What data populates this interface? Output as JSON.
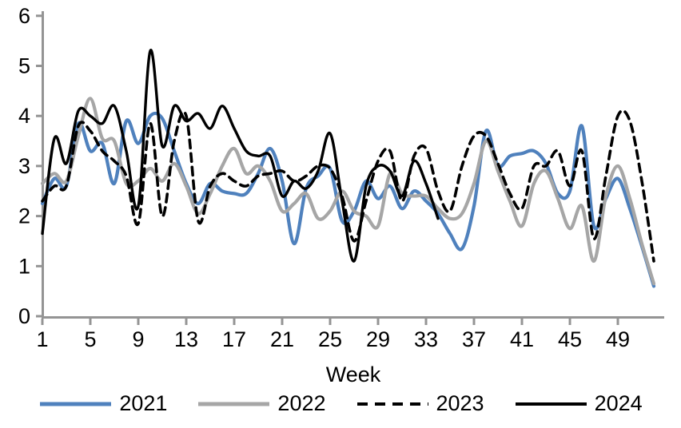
{
  "chart_data": {
    "type": "line",
    "title": "",
    "xlabel": "Week",
    "ylabel": "",
    "xlim": [
      1,
      52
    ],
    "ylim": [
      0,
      6
    ],
    "x_ticks": [
      1,
      5,
      9,
      13,
      17,
      21,
      25,
      29,
      33,
      37,
      41,
      45,
      49
    ],
    "y_ticks": [
      0,
      1,
      2,
      3,
      4,
      5,
      6
    ],
    "grid": false,
    "legend_position": "bottom",
    "smoothing": "excel-spline",
    "x": [
      1,
      2,
      3,
      4,
      5,
      6,
      7,
      8,
      9,
      10,
      11,
      12,
      13,
      14,
      15,
      16,
      17,
      18,
      19,
      20,
      21,
      22,
      23,
      24,
      25,
      26,
      27,
      28,
      29,
      30,
      31,
      32,
      33,
      34,
      35,
      36,
      37,
      38,
      39,
      40,
      41,
      42,
      43,
      44,
      45,
      46,
      47,
      48,
      49,
      50,
      51,
      52
    ],
    "series": [
      {
        "name": "2021",
        "color": "#4f81bd",
        "style": "solid",
        "width": 4.2,
        "values": [
          2.25,
          2.75,
          2.6,
          3.85,
          3.3,
          3.45,
          2.65,
          3.9,
          3.45,
          4.0,
          3.95,
          3.3,
          2.65,
          2.25,
          2.65,
          2.5,
          2.45,
          2.45,
          2.85,
          3.35,
          2.7,
          1.45,
          2.55,
          2.8,
          2.95,
          1.9,
          2.1,
          2.7,
          2.35,
          2.6,
          2.15,
          2.5,
          2.3,
          2.05,
          1.65,
          1.35,
          2.2,
          3.7,
          3.0,
          3.2,
          3.25,
          3.3,
          3.05,
          2.45,
          2.5,
          3.8,
          1.8,
          2.35,
          2.75,
          2.15,
          1.4,
          0.6
        ]
      },
      {
        "name": "2022",
        "color": "#a6a6a6",
        "style": "solid",
        "width": 4.2,
        "values": [
          2.65,
          2.85,
          2.7,
          3.6,
          4.35,
          3.55,
          3.5,
          2.65,
          2.7,
          2.95,
          2.7,
          3.05,
          2.6,
          2.05,
          2.45,
          3.0,
          3.35,
          2.85,
          3.0,
          2.7,
          2.1,
          2.25,
          2.45,
          1.95,
          2.1,
          2.5,
          2.1,
          2.0,
          1.8,
          2.85,
          2.45,
          2.4,
          2.4,
          2.15,
          1.95,
          2.05,
          2.65,
          3.5,
          2.9,
          2.3,
          1.8,
          2.65,
          2.9,
          2.35,
          1.75,
          2.2,
          1.1,
          2.4,
          3.0,
          2.35,
          1.45,
          0.65
        ]
      },
      {
        "name": "2023",
        "color": "#000000",
        "style": "dashed",
        "width": 3.6,
        "values": [
          2.3,
          2.6,
          2.6,
          3.8,
          3.7,
          3.3,
          3.1,
          2.8,
          1.85,
          3.85,
          2.0,
          3.5,
          4.0,
          1.9,
          2.6,
          2.85,
          2.7,
          2.6,
          2.8,
          2.85,
          2.9,
          2.7,
          2.8,
          3.0,
          2.95,
          2.4,
          1.5,
          2.3,
          3.1,
          3.3,
          2.3,
          3.2,
          3.35,
          2.5,
          2.1,
          3.0,
          3.6,
          3.6,
          3.05,
          2.45,
          2.15,
          3.0,
          3.0,
          3.3,
          2.6,
          3.3,
          1.55,
          2.8,
          4.0,
          3.9,
          2.7,
          1.1
        ]
      },
      {
        "name": "2024",
        "color": "#000000",
        "style": "solid",
        "width": 3.4,
        "values": [
          1.65,
          3.55,
          3.05,
          4.1,
          4.0,
          3.85,
          4.2,
          3.3,
          2.2,
          5.3,
          3.4,
          4.2,
          3.9,
          4.05,
          3.75,
          4.2,
          3.75,
          3.3,
          3.2,
          3.2,
          2.4,
          2.7,
          2.55,
          2.9,
          3.65,
          2.3,
          1.1,
          2.6,
          3.0,
          2.9,
          2.4,
          3.1,
          2.65,
          1.95
        ]
      }
    ]
  },
  "colors": {
    "axis": "#949494",
    "text": "#000000",
    "background": "#ffffff"
  },
  "layout_values": {
    "note": "weekly epidemiological-style curve comparison, 4 years"
  }
}
